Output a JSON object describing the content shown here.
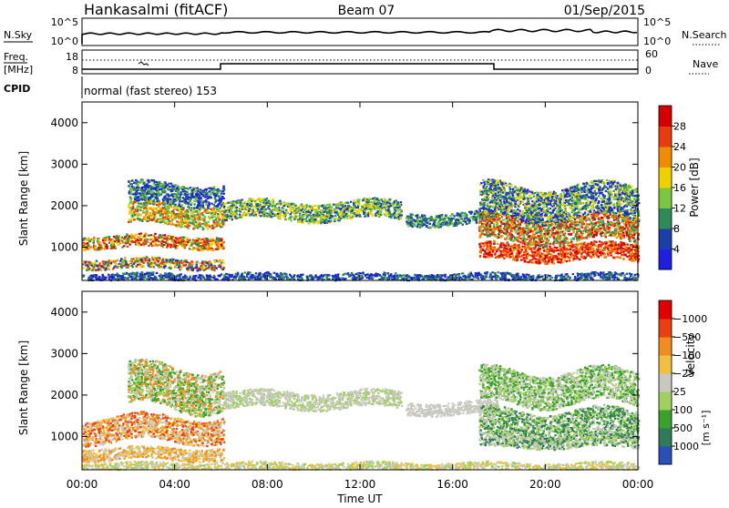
{
  "header": {
    "radar": "Hankasalmi (fitACF)",
    "beam": "Beam 07",
    "date": "01/Sep/2015"
  },
  "top_panels": {
    "nsky": {
      "label": "N.Sky",
      "ticks": [
        "10^5",
        "10^0"
      ],
      "right_ticks": [
        "10^5",
        "10^0"
      ],
      "legend": "N.Search"
    },
    "freq": {
      "label_line1": "Freq.",
      "label_line2": "[MHz]",
      "ticks": [
        "18",
        "8"
      ],
      "right_ticks": [
        "60",
        "0"
      ],
      "legend": "Nave"
    },
    "cpid": {
      "label": "CPID",
      "text": "normal (fast stereo) 153"
    }
  },
  "chart_data": [
    {
      "type": "heatmap",
      "title": "",
      "xlabel": "Time UT",
      "ylabel": "Slant Range [km]",
      "xlim": [
        "00:00",
        "00:00"
      ],
      "ylim": [
        200,
        4500
      ],
      "x_ticks": [
        "00:00",
        "04:00",
        "08:00",
        "12:00",
        "16:00",
        "20:00",
        "00:00"
      ],
      "y_ticks": [
        1000,
        2000,
        3000,
        4000
      ],
      "colorbar": {
        "label": "Power [dB]",
        "ticks": [
          "4",
          "8",
          "12",
          "16",
          "20",
          "24",
          "28"
        ],
        "colors": [
          "#1f1fe0",
          "#1c3ea8",
          "#2e8b57",
          "#7bc742",
          "#f0d000",
          "#f08c00",
          "#e83c10",
          "#d40000"
        ]
      }
    },
    {
      "type": "heatmap",
      "title": "",
      "xlabel": "Time UT",
      "ylabel": "Slant Range [km]",
      "xlim": [
        "00:00",
        "00:00"
      ],
      "ylim": [
        200,
        4500
      ],
      "x_ticks": [
        "00:00",
        "04:00",
        "08:00",
        "12:00",
        "16:00",
        "20:00",
        "00:00"
      ],
      "y_ticks": [
        1000,
        2000,
        3000,
        4000
      ],
      "colorbar": {
        "label": "Velocity",
        "units": "[m s⁻¹]",
        "ticks": [
          "1000",
          "500",
          "100",
          "25",
          "−25",
          "−100",
          "−500",
          "−1000"
        ],
        "colors": [
          "#2a4fb8",
          "#2f7a5a",
          "#3aa02e",
          "#a0d060",
          "#c8c8c0",
          "#f0c040",
          "#f08c20",
          "#e84010",
          "#e00000"
        ]
      }
    }
  ]
}
